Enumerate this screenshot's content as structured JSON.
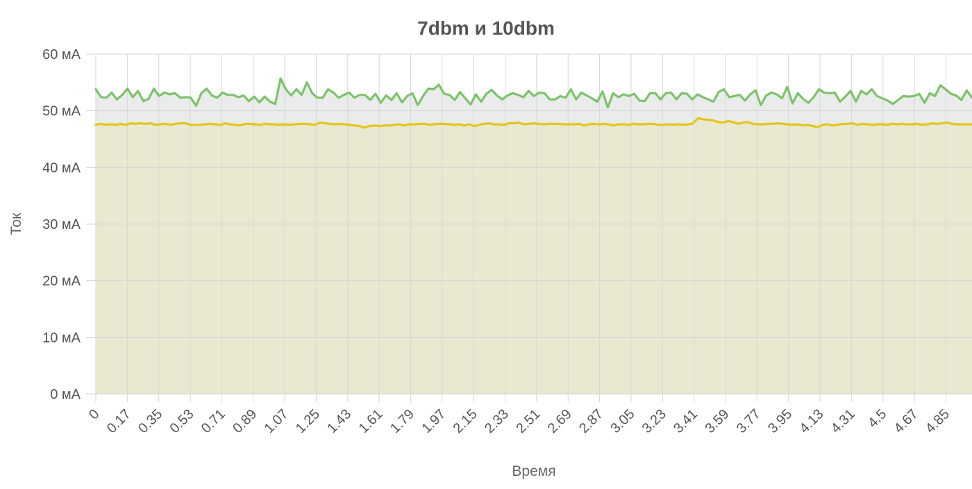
{
  "chart_data": {
    "type": "area",
    "title": "7dbm и 10dbm",
    "xlabel": "Время",
    "ylabel": "Ток",
    "y_unit": "мА",
    "ylim": [
      0,
      60
    ],
    "y_ticks": [
      0,
      10,
      20,
      30,
      40,
      50,
      60
    ],
    "y_tick_labels": [
      "0 мА",
      "10 мА",
      "20 мА",
      "30 мА",
      "40 мА",
      "50 мА",
      "60 мА"
    ],
    "x_tick_labels": [
      "0",
      "0.17",
      "0.35",
      "0.53",
      "0.71",
      "0.89",
      "1.07",
      "1.25",
      "1.43",
      "1.61",
      "1.79",
      "1.97",
      "2.15",
      "2.33",
      "2.51",
      "2.69",
      "2.87",
      "3.05",
      "3.23",
      "3.41",
      "3.59",
      "3.77",
      "3.95",
      "4.13",
      "4.31",
      "4.5",
      "4.67",
      "4.85"
    ],
    "grid": true,
    "legend": "none",
    "stacked": false,
    "series": [
      {
        "color": "#7cc36a",
        "fill": "#e9ecea",
        "values": [
          53.8,
          52.4,
          52.3,
          53.2,
          52.0,
          52.8,
          53.9,
          52.4,
          53.5,
          51.7,
          52.1,
          53.9,
          52.6,
          53.2,
          52.9,
          53.1,
          52.3,
          52.4,
          52.3,
          50.9,
          53.1,
          53.9,
          52.7,
          52.3,
          53.2,
          52.8,
          52.8,
          52.4,
          52.7,
          51.7,
          52.5,
          51.5,
          52.5,
          51.6,
          51.2,
          55.7,
          53.8,
          52.7,
          53.8,
          52.8,
          55.0,
          53.1,
          52.3,
          52.3,
          53.8,
          53.2,
          52.3,
          52.8,
          53.2,
          52.3,
          52.8,
          52.8,
          51.9,
          53.0,
          51.4,
          52.7,
          51.9,
          53.1,
          51.5,
          52.6,
          53.1,
          51.0,
          52.6,
          53.9,
          53.8,
          54.6,
          53.0,
          52.8,
          51.9,
          53.3,
          52.2,
          51.1,
          52.9,
          51.6,
          53.0,
          53.7,
          52.7,
          52.0,
          52.7,
          53.1,
          52.8,
          52.4,
          53.5,
          52.6,
          53.2,
          53.1,
          52.0,
          52.0,
          52.6,
          52.3,
          53.8,
          52.0,
          53.2,
          52.7,
          52.2,
          51.6,
          53.4,
          50.6,
          53.1,
          52.4,
          52.9,
          52.6,
          53.0,
          51.8,
          51.7,
          53.1,
          53.1,
          52.0,
          53.1,
          53.2,
          52.0,
          53.1,
          53.0,
          52.0,
          52.9,
          52.4,
          52.0,
          51.6,
          53.3,
          53.8,
          52.4,
          52.6,
          52.8,
          51.8,
          52.9,
          53.6,
          51.0,
          52.7,
          53.2,
          52.9,
          52.2,
          54.2,
          51.3,
          53.1,
          52.1,
          51.4,
          52.4,
          53.8,
          53.2,
          53.1,
          53.2,
          51.6,
          52.5,
          53.5,
          51.6,
          53.5,
          52.9,
          53.8,
          52.6,
          52.2,
          51.8,
          51.2,
          51.9,
          52.6,
          52.5,
          52.6,
          53.0,
          51.4,
          53.1,
          52.6,
          54.5,
          53.8,
          53.0,
          52.7,
          51.9,
          53.6,
          52.3
        ]
      },
      {
        "color": "#e6c51a",
        "fill": "#e9e9d2",
        "values": [
          47.5,
          47.7,
          47.5,
          47.6,
          47.5,
          47.7,
          47.5,
          47.8,
          47.7,
          47.8,
          47.7,
          47.8,
          47.5,
          47.6,
          47.7,
          47.5,
          47.7,
          47.8,
          47.8,
          47.5,
          47.5,
          47.5,
          47.6,
          47.7,
          47.6,
          47.5,
          47.8,
          47.6,
          47.5,
          47.4,
          47.7,
          47.7,
          47.6,
          47.5,
          47.7,
          47.6,
          47.6,
          47.5,
          47.6,
          47.5,
          47.6,
          47.7,
          47.7,
          47.6,
          47.5,
          47.9,
          47.8,
          47.7,
          47.6,
          47.7,
          47.6,
          47.5,
          47.4,
          47.3,
          47.0,
          47.3,
          47.4,
          47.3,
          47.4,
          47.4,
          47.5,
          47.6,
          47.4,
          47.6,
          47.6,
          47.7,
          47.7,
          47.5,
          47.6,
          47.7,
          47.7,
          47.6,
          47.5,
          47.6,
          47.4,
          47.6,
          47.3,
          47.5,
          47.7,
          47.8,
          47.6,
          47.6,
          47.5,
          47.8,
          47.8,
          47.9,
          47.6,
          47.7,
          47.8,
          47.7,
          47.6,
          47.7,
          47.7,
          47.7,
          47.6,
          47.6,
          47.6,
          47.7,
          47.4,
          47.6,
          47.7,
          47.6,
          47.7,
          47.6,
          47.4,
          47.6,
          47.6,
          47.5,
          47.7,
          47.6,
          47.6,
          47.7,
          47.7,
          47.5,
          47.5,
          47.6,
          47.5,
          47.6,
          47.5,
          47.6,
          47.8,
          48.7,
          48.5,
          48.4,
          48.3,
          48.0,
          47.9,
          48.2,
          48.0,
          47.7,
          47.9,
          48.0,
          47.7,
          47.6,
          47.6,
          47.7,
          47.7,
          47.8,
          47.7,
          47.6,
          47.5,
          47.6,
          47.4,
          47.5,
          47.3,
          47.1,
          47.5,
          47.6,
          47.4,
          47.5,
          47.7,
          47.7,
          47.8,
          47.5,
          47.7,
          47.6,
          47.5,
          47.6,
          47.6,
          47.5,
          47.7,
          47.6,
          47.7,
          47.6,
          47.6,
          47.7,
          47.5,
          47.6,
          47.8,
          47.7,
          47.8,
          47.9,
          47.7,
          47.6,
          47.6,
          47.6,
          47.6
        ]
      }
    ]
  }
}
